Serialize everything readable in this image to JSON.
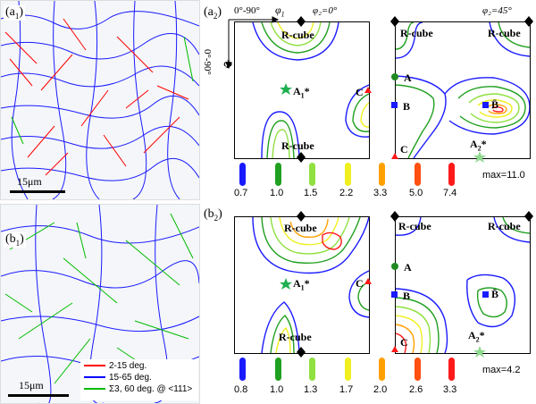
{
  "panels": {
    "a1": "(a",
    "a1_sub": "1",
    "b1": "(b",
    "b1_sub": "1",
    "a2": "(a",
    "a2_sub": "2",
    "b2": "(b",
    "b2_sub": "2"
  },
  "scale": {
    "a": "15μm",
    "b": "15μm"
  },
  "axes": {
    "top": "0°-90°",
    "phi1": "φ",
    "phi1_sub": "1",
    "Phi": "Φ",
    "left": "0°-90°"
  },
  "sections": {
    "phi2_0": "φ₂=0°",
    "phi2_45": "φ₂=45°"
  },
  "labels": {
    "rcube": "R-cube",
    "A": "A",
    "B": "B",
    "Bbar": "B̄",
    "C": "C",
    "A1": "A",
    "A1_sub": "1",
    "A1_star": "*",
    "A2": "A",
    "A2_sub": "2",
    "A2_star": "*"
  },
  "legend_a": {
    "values": [
      "0.7",
      "1.0",
      "1.5",
      "2.2",
      "3.3",
      "5.0",
      "7.4"
    ],
    "max": "max=11.0"
  },
  "legend_b": {
    "values": [
      "0.8",
      "1.0",
      "1.3",
      "1.7",
      "2.0",
      "2.6",
      "3.3"
    ],
    "max": "max=4.2"
  },
  "legend_colors": [
    "#1a1aff",
    "#20a020",
    "#90e040",
    "#f0f020",
    "#ffa000",
    "#ff5010",
    "#ff1a1a"
  ],
  "misorientation_legend": [
    "2-15 deg.",
    "15-65 deg.",
    "Σ3, 60 deg. @ <111>"
  ],
  "misorientation_colors": [
    "#ff0000",
    "#0000ff",
    "#00bb00"
  ]
}
